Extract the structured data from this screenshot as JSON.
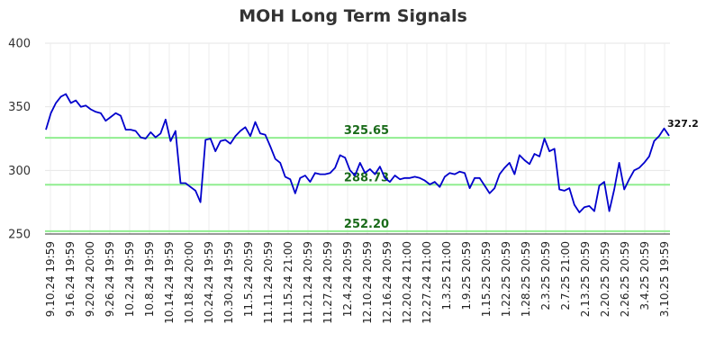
{
  "chart_data": {
    "type": "line",
    "title": "MOH Long Term Signals",
    "xlabel": "",
    "ylabel": "",
    "ylim": [
      250,
      400
    ],
    "y_ticks": [
      "250",
      "300",
      "350",
      "400"
    ],
    "grid": true,
    "x_tick_labels": [
      "9.10.24 19:59",
      "9.16.24 19:59",
      "9.20.24 20:00",
      "9.26.24 19:59",
      "10.2.24 19:59",
      "10.8.24 19:59",
      "10.14.24 19:59",
      "10.18.24 20:00",
      "10.24.24 19:59",
      "10.30.24 19:59",
      "11.5.24 20:59",
      "11.11.24 20:59",
      "11.15.24 21:00",
      "11.21.24 20:59",
      "11.27.24 20:59",
      "12.4.24 20:59",
      "12.10.24 20:59",
      "12.16.24 20:59",
      "12.20.24 21:00",
      "12.27.24 21:00",
      "1.3.25 21:00",
      "1.9.25 20:59",
      "1.15.25 20:59",
      "1.22.25 20:59",
      "1.28.25 20:59",
      "2.3.25 20:59",
      "2.7.25 21:00",
      "2.13.25 20:59",
      "2.20.25 20:59",
      "2.26.25 20:59",
      "3.4.25 20:59",
      "3.10.25 19:59"
    ],
    "series": [
      {
        "color": "#0000cc",
        "values": [
          332,
          345,
          353,
          358,
          360,
          353,
          355,
          350,
          351,
          348,
          346,
          345,
          339,
          342,
          345,
          343,
          332,
          332,
          331,
          326,
          325,
          330,
          326,
          329,
          340,
          323,
          331,
          290,
          290,
          287,
          284,
          275,
          324,
          325,
          315,
          323,
          324,
          321,
          327,
          331,
          334,
          327,
          338,
          329,
          328,
          319,
          309,
          306,
          295,
          293,
          282,
          294,
          296,
          291,
          298,
          297,
          297,
          298,
          302,
          312,
          310,
          300,
          296,
          306,
          298,
          301,
          297,
          303,
          294,
          291,
          296,
          293,
          294,
          294,
          295,
          294,
          292,
          289,
          291,
          287,
          295,
          298,
          297,
          299,
          298,
          286,
          294,
          294,
          288,
          282,
          286,
          297,
          302,
          306,
          297,
          312,
          308,
          305,
          313,
          311,
          325,
          315,
          317,
          285,
          284,
          286,
          273,
          267,
          271,
          272,
          268,
          288,
          291,
          268,
          285,
          306,
          285,
          293,
          300,
          302,
          306,
          311,
          323,
          327,
          333,
          327.2
        ]
      }
    ],
    "levels": [
      {
        "value": 325.65,
        "label": "325.65",
        "color": "#90ee90"
      },
      {
        "value": 288.73,
        "label": "288.73",
        "color": "#90ee90"
      },
      {
        "value": 252.2,
        "label": "252.20",
        "color": "#90ee90"
      }
    ],
    "last_value_label": "327.2"
  }
}
